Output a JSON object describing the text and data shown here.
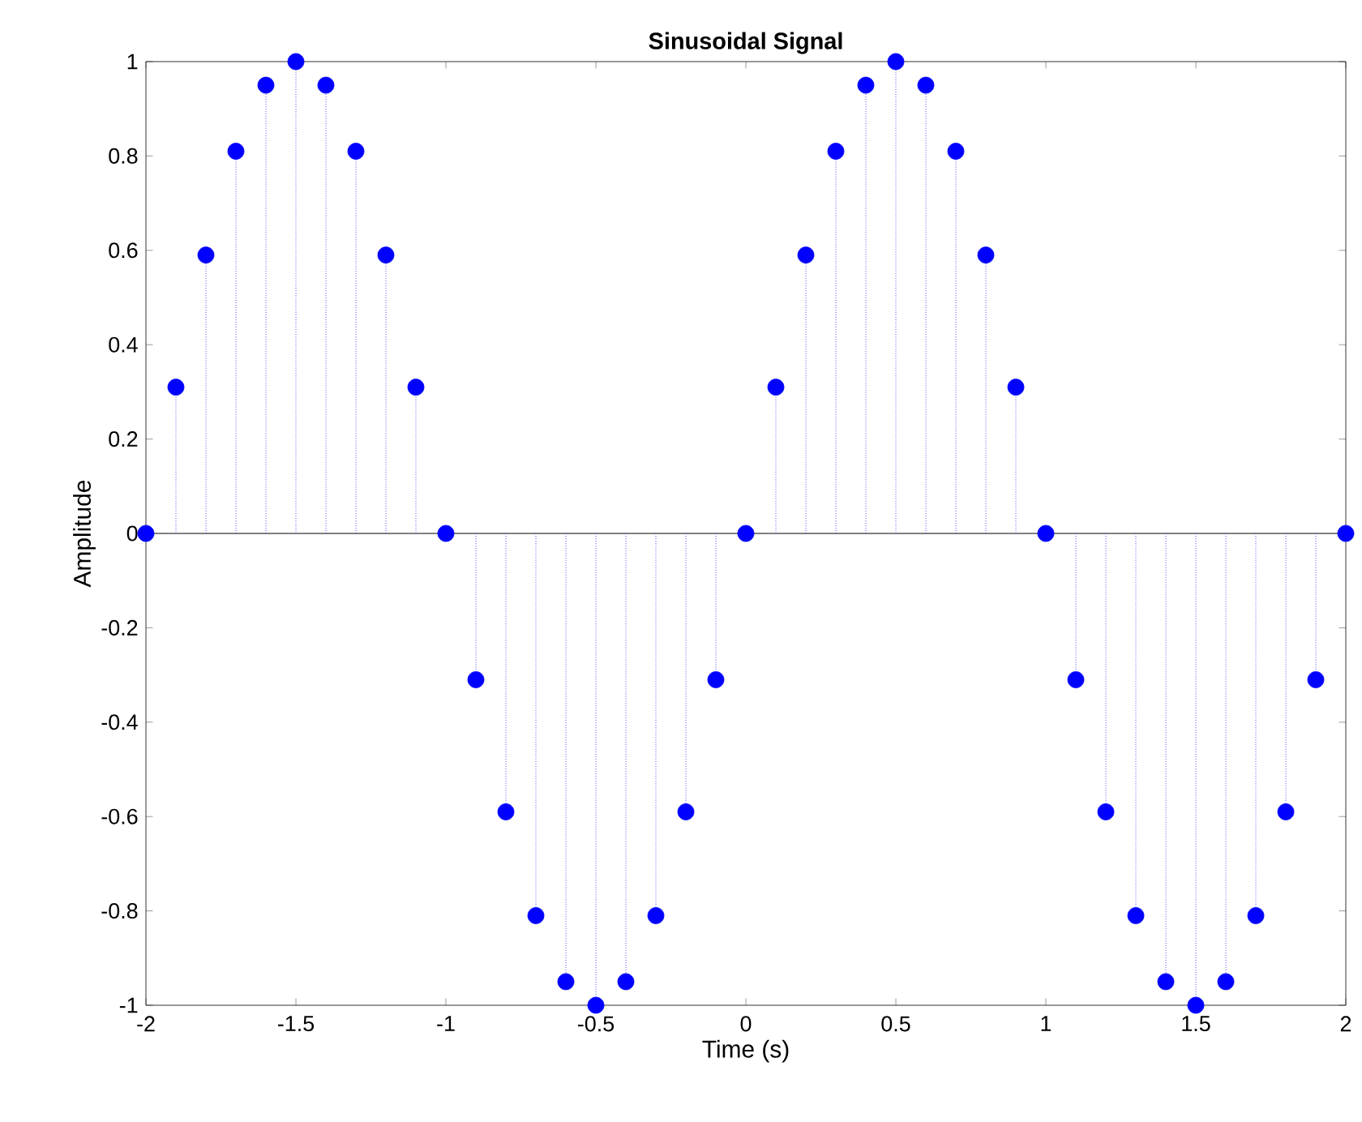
{
  "chart_data": {
    "type": "lollipop",
    "title": "Sinusoidal Signal",
    "xlabel": "Time (s)",
    "ylabel": "Amplitude",
    "x": [
      -2,
      -1.9,
      -1.8,
      -1.7,
      -1.6,
      -1.5,
      -1.4,
      -1.3,
      -1.2,
      -1.1,
      -1,
      -0.9,
      -0.8,
      -0.7,
      -0.6,
      -0.5,
      -0.4,
      -0.3,
      -0.2,
      -0.1,
      0,
      0.1,
      0.2,
      0.3,
      0.4,
      0.5,
      0.6,
      0.7,
      0.8,
      0.9,
      1,
      1.1,
      1.2,
      1.3,
      1.4,
      1.5,
      1.6,
      1.7,
      1.8,
      1.9,
      2
    ],
    "values": [
      0,
      0.31,
      0.59,
      0.81,
      0.95,
      1,
      0.95,
      0.81,
      0.59,
      0.31,
      0,
      -0.31,
      -0.59,
      -0.81,
      -0.95,
      -1,
      -0.95,
      -0.81,
      -0.59,
      -0.31,
      0,
      0.31,
      0.59,
      0.81,
      0.95,
      1,
      0.95,
      0.81,
      0.59,
      0.31,
      0,
      -0.31,
      -0.59,
      -0.81,
      -0.95,
      -1,
      -0.95,
      -0.81,
      -0.59,
      -0.31,
      0
    ],
    "color": "#0000ff",
    "marker": "circle",
    "line_style": "dotted",
    "xlim": [
      -2,
      2
    ],
    "xticks": [
      -2,
      -1.5,
      -1,
      -0.5,
      0,
      0.5,
      1,
      1.5,
      2
    ],
    "ylim": [
      -1,
      1
    ],
    "yticks": [
      -1,
      -0.8,
      -0.6,
      -0.4,
      -0.2,
      0,
      0.2,
      0.4,
      0.6,
      0.8,
      1
    ]
  }
}
